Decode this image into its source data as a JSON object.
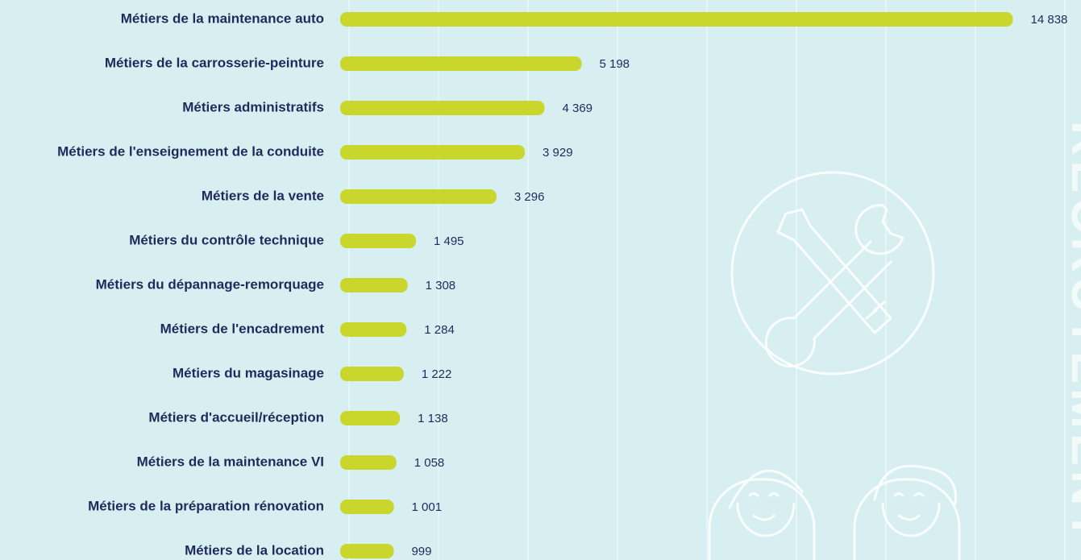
{
  "chart_data": {
    "type": "hbar",
    "categories": [
      "Métiers de la maintenance auto",
      "Métiers de la carrosserie-peinture",
      "Métiers administratifs",
      "Métiers de l'enseignement de la conduite",
      "Métiers de la vente",
      "Métiers du contrôle technique",
      "Métiers du dépannage-remorquage",
      "Métiers de l'encadrement",
      "Métiers du magasinage",
      "Métiers d'accueil/réception",
      "Métiers de la maintenance VI",
      "Métiers de la préparation rénovation",
      "Métiers de la location"
    ],
    "values": [
      14838,
      5198,
      4369,
      3929,
      3296,
      1495,
      1308,
      1284,
      1222,
      1138,
      1058,
      1001,
      999
    ],
    "value_labels": [
      "14 838",
      "5 198",
      "4 369",
      "3 929",
      "3 296",
      "1 495",
      "1 308",
      "1 284",
      "1 222",
      "1 138",
      "1 058",
      "1 001",
      "999"
    ],
    "color": "#c9d62b",
    "xlim": [
      0,
      16000
    ],
    "xticks": [
      0,
      2000,
      4000,
      6000,
      8000,
      10000,
      12000,
      14000,
      16000
    ],
    "grid": true,
    "watermark": "RECRUTEMENT"
  }
}
